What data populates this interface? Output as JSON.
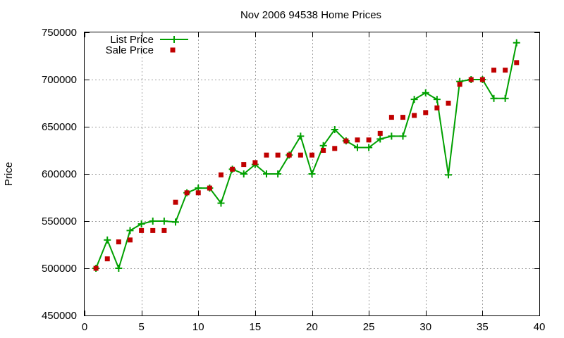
{
  "chart_data": {
    "type": "line",
    "title": "Nov 2006 94538 Home Prices",
    "xlabel": "",
    "ylabel": "Price",
    "xlim": [
      0,
      40
    ],
    "ylim": [
      450000,
      750000
    ],
    "xticks": [
      0,
      5,
      10,
      15,
      20,
      25,
      30,
      35,
      40
    ],
    "yticks": [
      450000,
      500000,
      550000,
      600000,
      650000,
      700000,
      750000
    ],
    "grid": true,
    "legend_position": "top-left",
    "series": [
      {
        "name": "List Price",
        "style": "line-with-plus-markers",
        "color": "#00a000",
        "x": [
          1,
          2,
          3,
          4,
          5,
          6,
          7,
          8,
          9,
          10,
          11,
          12,
          13,
          14,
          15,
          16,
          17,
          18,
          19,
          20,
          21,
          22,
          23,
          24,
          25,
          26,
          27,
          28,
          29,
          30,
          31,
          32,
          33,
          34,
          35,
          36,
          37,
          38
        ],
        "y": [
          500000,
          530000,
          500000,
          540000,
          547000,
          550000,
          550000,
          549000,
          580000,
          585000,
          585000,
          569000,
          605000,
          600000,
          610000,
          600000,
          600000,
          620000,
          640000,
          600000,
          630000,
          647000,
          635000,
          628000,
          628000,
          637000,
          640000,
          640000,
          679000,
          686000,
          679000,
          599000,
          698000,
          700000,
          700000,
          680000,
          680000,
          739000
        ]
      },
      {
        "name": "Sale Price",
        "style": "square-markers",
        "color": "#c00000",
        "x": [
          1,
          2,
          3,
          4,
          5,
          6,
          7,
          8,
          9,
          10,
          11,
          12,
          13,
          14,
          15,
          16,
          17,
          18,
          19,
          20,
          21,
          22,
          23,
          24,
          25,
          26,
          27,
          28,
          29,
          30,
          31,
          32,
          33,
          34,
          35,
          36,
          37,
          38
        ],
        "y": [
          500000,
          510000,
          528000,
          530000,
          540000,
          540000,
          540000,
          570000,
          580000,
          580000,
          585000,
          599000,
          605000,
          610000,
          612000,
          620000,
          620000,
          620000,
          620000,
          620000,
          625000,
          627000,
          635000,
          636000,
          636000,
          643000,
          660000,
          660000,
          662000,
          665000,
          670000,
          675000,
          695000,
          700000,
          700000,
          710000,
          710000,
          718000
        ]
      }
    ]
  }
}
